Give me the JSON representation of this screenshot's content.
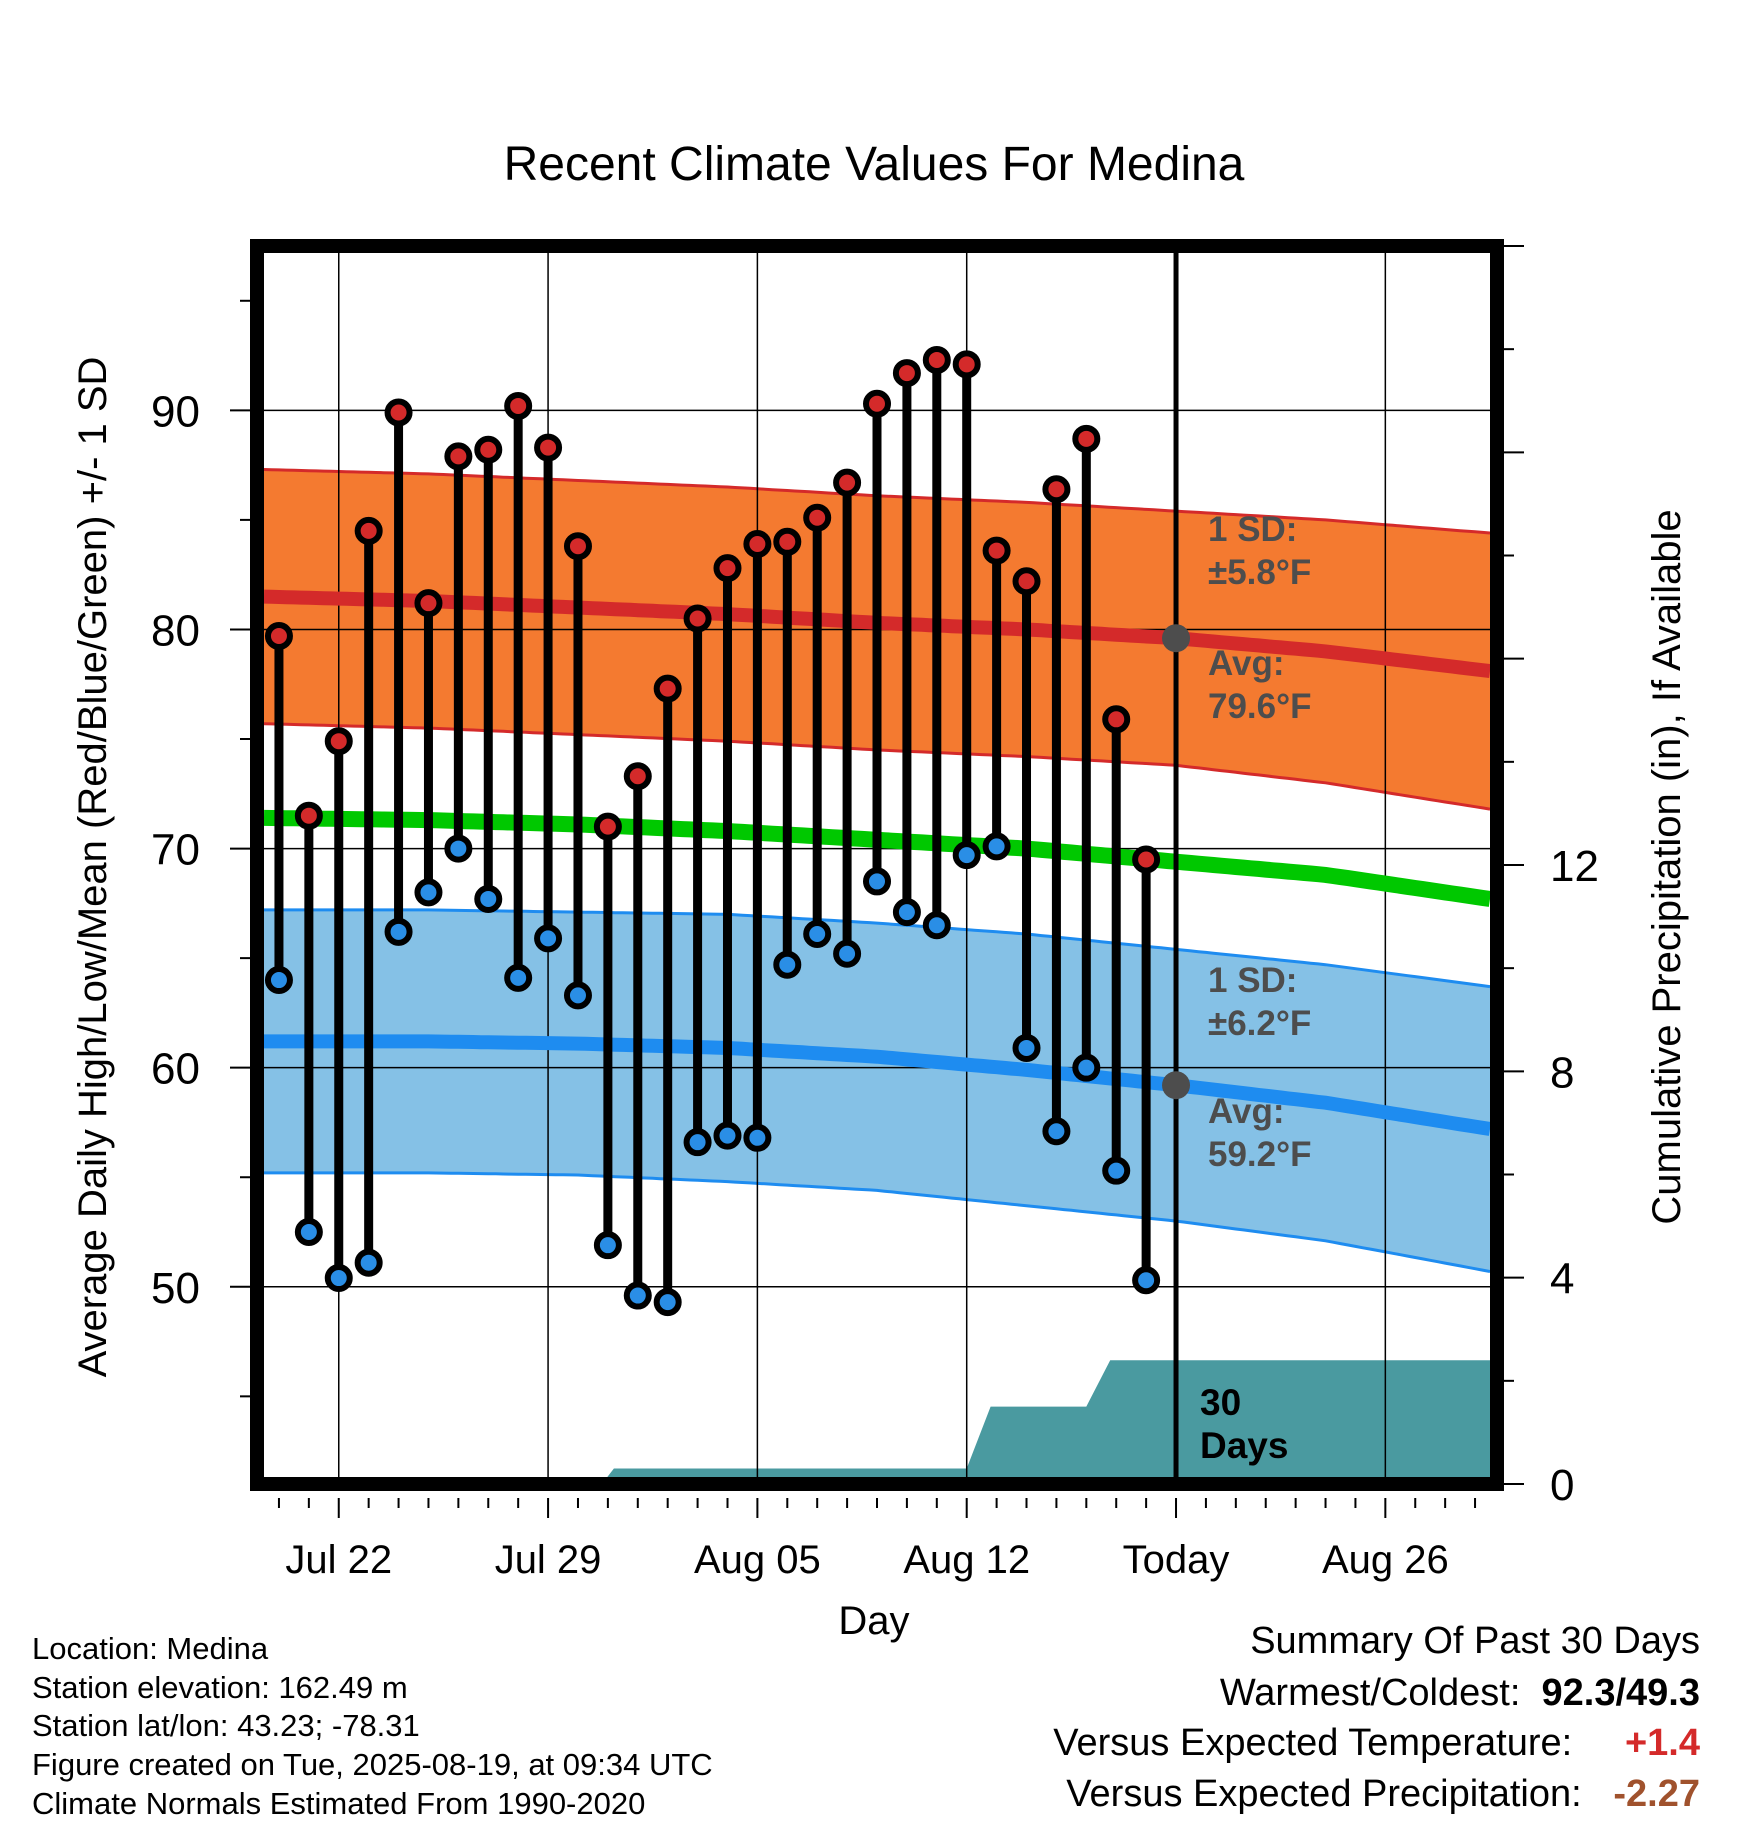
{
  "chart_data": {
    "type": "line",
    "title": "Recent Climate Values For Medina",
    "xlabel": "Day",
    "ylabel": "Average Daily High/Low/Mean (Red/Blue/Green) +/- 1 SD",
    "ylabel_right": "Cumulative Precipitation (in), If Available",
    "x_tick_labels": [
      "Jul 22",
      "Jul 29",
      "Aug 05",
      "Aug 12",
      "Today",
      "Aug 26"
    ],
    "x_tick_days": [
      2,
      9,
      16,
      23,
      30,
      37
    ],
    "xlim": [
      -0.5,
      40.5
    ],
    "y_ticks": [
      50,
      60,
      70,
      80,
      90
    ],
    "ylim": [
      41,
      97.5
    ],
    "y2_ticks": [
      0,
      4,
      8,
      12
    ],
    "y2lim": [
      0,
      24
    ],
    "grid": true,
    "today_day": 30,
    "days_label": "30",
    "days_label_2": "Days",
    "normals": {
      "days": [
        -0.5,
        5,
        10,
        15,
        20,
        25,
        30,
        35,
        40.5
      ],
      "high_mean": [
        81.5,
        81.3,
        81.0,
        80.7,
        80.3,
        80.0,
        79.6,
        79.0,
        78.1
      ],
      "high_sd": [
        5.8,
        5.8,
        5.8,
        5.8,
        5.8,
        5.8,
        5.8,
        6.0,
        6.3
      ],
      "low_mean": [
        61.2,
        61.2,
        61.1,
        60.9,
        60.5,
        59.9,
        59.2,
        58.4,
        57.2
      ],
      "low_sd": [
        6.0,
        6.0,
        6.0,
        6.1,
        6.1,
        6.2,
        6.2,
        6.3,
        6.5
      ],
      "mean": [
        71.4,
        71.3,
        71.1,
        70.8,
        70.4,
        70.0,
        69.4,
        68.8,
        67.7
      ]
    },
    "today_high": {
      "label": "1 SD:",
      "sd": "±5.8°F",
      "avg_label": "Avg:",
      "avg": "79.6°F",
      "value": 79.6
    },
    "today_low": {
      "label": "1 SD:",
      "sd": "±6.2°F",
      "avg_label": "Avg:",
      "avg": "59.2°F",
      "value": 59.2
    },
    "series": [
      {
        "name": "High",
        "color": "#d42a2a",
        "days": [
          0,
          1,
          2,
          3,
          4,
          5,
          6,
          7,
          8,
          9,
          10,
          11,
          12,
          13,
          14,
          15,
          16,
          17,
          18,
          19,
          20,
          21,
          22,
          23,
          24,
          25,
          26,
          27,
          28,
          29
        ],
        "values": [
          79.7,
          71.5,
          74.9,
          84.5,
          89.9,
          81.2,
          87.9,
          88.2,
          90.2,
          88.3,
          83.8,
          71.0,
          73.3,
          77.3,
          80.5,
          82.8,
          83.9,
          84.0,
          85.1,
          86.7,
          90.3,
          91.7,
          92.3,
          92.1,
          83.6,
          82.2,
          86.4,
          88.7,
          75.9,
          69.5
        ]
      },
      {
        "name": "Low",
        "color": "#2a8ee6",
        "days": [
          0,
          1,
          2,
          3,
          4,
          5,
          6,
          7,
          8,
          9,
          10,
          11,
          12,
          13,
          14,
          15,
          16,
          17,
          18,
          19,
          20,
          21,
          22,
          23,
          24,
          25,
          26,
          27,
          28,
          29
        ],
        "values": [
          64.0,
          52.5,
          50.4,
          51.1,
          66.2,
          68.0,
          70.0,
          67.7,
          64.1,
          65.9,
          63.3,
          51.9,
          49.6,
          49.3,
          56.6,
          56.9,
          56.8,
          64.7,
          66.1,
          65.2,
          68.5,
          67.1,
          66.5,
          69.7,
          70.1,
          60.9,
          57.1,
          60.0,
          55.3,
          50.3
        ]
      }
    ],
    "precip": {
      "color": "#4a9aa0",
      "days": [
        -0.5,
        10.8,
        11.2,
        23.0,
        23.8,
        27.0,
        27.8,
        40.5
      ],
      "values": [
        0.0,
        0.0,
        0.3,
        0.3,
        1.5,
        1.5,
        2.4,
        2.4
      ]
    },
    "colors": {
      "high_band": "#f47a30",
      "high_line": "#d42a2a",
      "low_band": "#85c1e6",
      "low_line": "#1e8cf0",
      "mean_line": "#00c800",
      "today_dot": "#4d4d4d"
    }
  },
  "info": {
    "location": "Location: Medina",
    "elevation": "Station elevation: 162.49 m",
    "latlon": "Station lat/lon: 43.23; -78.31",
    "created": "Figure created on Tue, 2025-08-19, at 09:34 UTC",
    "normals": "Climate Normals Estimated From 1990-2020"
  },
  "summary": {
    "title": "Summary Of Past 30 Days",
    "warm_cold_label": "Warmest/Coldest:",
    "warm_cold_value": "92.3/49.3",
    "temp_label": "Versus Expected Temperature:",
    "temp_value": "+1.4",
    "temp_color": "#d42a2a",
    "precip_label": "Versus Expected Precipitation:",
    "precip_value": "-2.27",
    "precip_color": "#a0522d"
  }
}
